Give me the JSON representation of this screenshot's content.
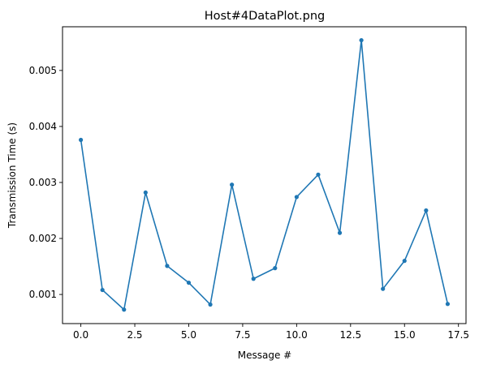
{
  "chart_data": {
    "type": "line",
    "title": "Host#4DataPlot.png",
    "xlabel": "Message #",
    "ylabel": "Transmission Time (s)",
    "xlim": [
      -0.85,
      17.85
    ],
    "ylim": [
      0.00048,
      0.00578
    ],
    "x_ticks": [
      0.0,
      2.5,
      5.0,
      7.5,
      10.0,
      12.5,
      15.0,
      17.5
    ],
    "x_tick_labels": [
      "0.0",
      "2.5",
      "5.0",
      "7.5",
      "10.0",
      "12.5",
      "15.0",
      "17.5"
    ],
    "y_ticks": [
      0.001,
      0.002,
      0.003,
      0.004,
      0.005
    ],
    "y_tick_labels": [
      "0.001",
      "0.002",
      "0.003",
      "0.004",
      "0.005"
    ],
    "grid": false,
    "color": "#1f77b4",
    "series": [
      {
        "x": [
          0,
          1,
          2,
          3,
          4,
          5,
          6,
          7,
          8,
          9,
          10,
          11,
          12,
          13,
          14,
          15,
          16,
          17
        ],
        "values": [
          0.00376,
          0.00108,
          0.00073,
          0.00282,
          0.00151,
          0.00121,
          0.00082,
          0.00296,
          0.00128,
          0.00147,
          0.00274,
          0.00314,
          0.0021,
          0.00554,
          0.0011,
          0.0016,
          0.0025,
          0.00083
        ]
      }
    ]
  }
}
